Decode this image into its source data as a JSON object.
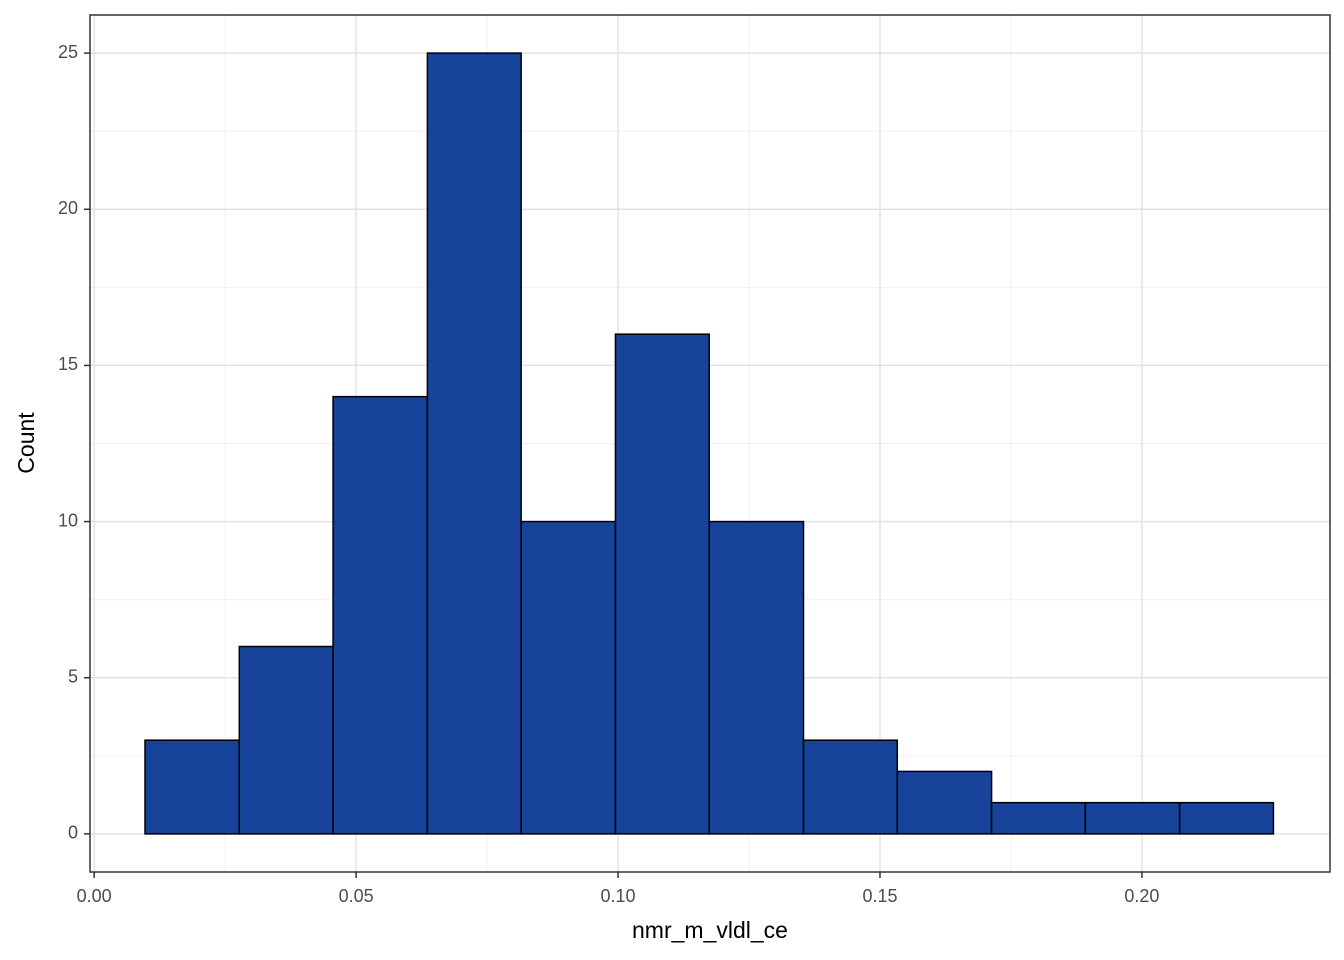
{
  "chart_data": {
    "type": "histogram",
    "x_label": "nmr_m_vldl_ce",
    "y_label": "Count",
    "bins": [
      0.0097,
      0.0277,
      0.0456,
      0.0636,
      0.0815,
      0.0995,
      0.1174,
      0.1354,
      0.1533,
      0.1713,
      0.1892,
      0.2072,
      0.2251
    ],
    "values": [
      3,
      6,
      14,
      25,
      10,
      16,
      10,
      3,
      2,
      1,
      1,
      1
    ],
    "color": "#17449a",
    "edge_color": "#000000",
    "xlim": [
      -0.0008,
      0.2359
    ],
    "ylim": [
      -1.22,
      26.22
    ],
    "xticks": [
      {
        "value": 0,
        "label": "0.00"
      },
      {
        "value": 0.05,
        "label": "0.05"
      },
      {
        "value": 0.1,
        "label": "0.10"
      },
      {
        "value": 0.15,
        "label": "0.15"
      },
      {
        "value": 0.2,
        "label": "0.20"
      }
    ],
    "yticks": [
      0,
      5,
      10,
      15,
      20,
      25
    ],
    "grid": true
  }
}
